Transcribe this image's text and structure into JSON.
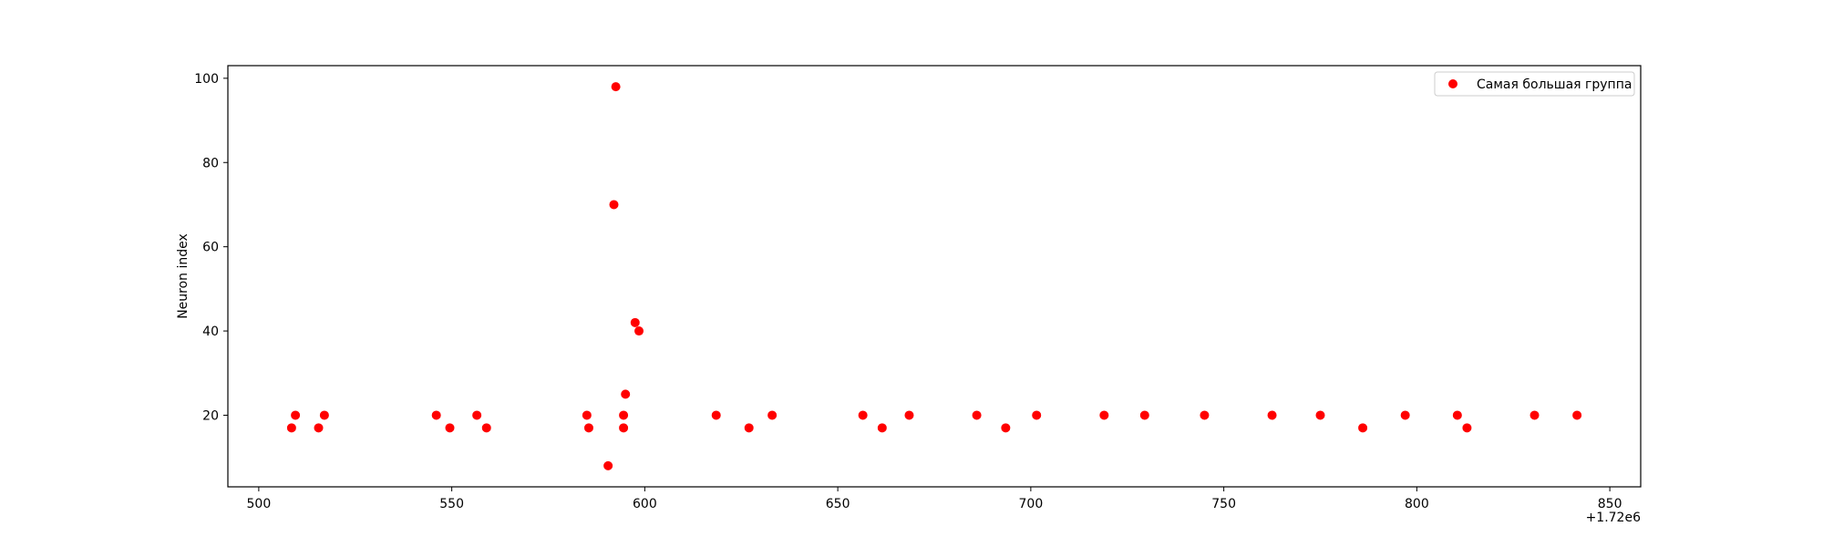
{
  "chart_data": {
    "type": "scatter",
    "title": "",
    "xlabel": "",
    "ylabel": "Neuron index",
    "x_offset_label": "+1.72e6",
    "x_offset": 1720000,
    "xlim": [
      492,
      858
    ],
    "ylim": [
      3,
      103
    ],
    "xticks": [
      500,
      550,
      600,
      650,
      700,
      750,
      800,
      850
    ],
    "yticks": [
      20,
      40,
      60,
      80,
      100
    ],
    "grid": false,
    "legend_position": "top-right",
    "color": "#ff0000",
    "series": [
      {
        "name": "Самая большая группа",
        "points": [
          {
            "x": 508.5,
            "y": 17
          },
          {
            "x": 509.5,
            "y": 20
          },
          {
            "x": 515.5,
            "y": 17
          },
          {
            "x": 517.0,
            "y": 20
          },
          {
            "x": 546.0,
            "y": 20
          },
          {
            "x": 549.5,
            "y": 17
          },
          {
            "x": 556.5,
            "y": 20
          },
          {
            "x": 559.0,
            "y": 17
          },
          {
            "x": 585.0,
            "y": 20
          },
          {
            "x": 585.5,
            "y": 17
          },
          {
            "x": 590.5,
            "y": 8
          },
          {
            "x": 592.0,
            "y": 70
          },
          {
            "x": 592.5,
            "y": 98
          },
          {
            "x": 594.5,
            "y": 20
          },
          {
            "x": 594.5,
            "y": 17
          },
          {
            "x": 595.0,
            "y": 25
          },
          {
            "x": 597.5,
            "y": 42
          },
          {
            "x": 598.5,
            "y": 40
          },
          {
            "x": 618.5,
            "y": 20
          },
          {
            "x": 627.0,
            "y": 17
          },
          {
            "x": 633.0,
            "y": 20
          },
          {
            "x": 656.5,
            "y": 20
          },
          {
            "x": 661.5,
            "y": 17
          },
          {
            "x": 668.5,
            "y": 20
          },
          {
            "x": 686.0,
            "y": 20
          },
          {
            "x": 693.5,
            "y": 17
          },
          {
            "x": 701.5,
            "y": 20
          },
          {
            "x": 719.0,
            "y": 20
          },
          {
            "x": 729.5,
            "y": 20
          },
          {
            "x": 745.0,
            "y": 20
          },
          {
            "x": 762.5,
            "y": 20
          },
          {
            "x": 775.0,
            "y": 20
          },
          {
            "x": 786.0,
            "y": 17
          },
          {
            "x": 797.0,
            "y": 20
          },
          {
            "x": 810.5,
            "y": 20
          },
          {
            "x": 813.0,
            "y": 17
          },
          {
            "x": 830.5,
            "y": 20
          },
          {
            "x": 841.5,
            "y": 20
          }
        ]
      }
    ]
  }
}
